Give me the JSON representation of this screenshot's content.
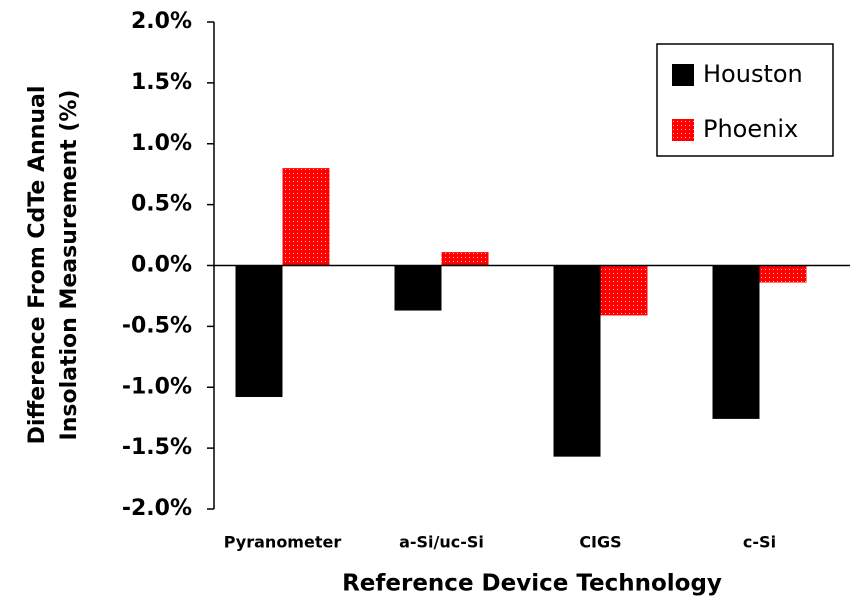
{
  "chart_data": {
    "type": "bar",
    "x_label": "Reference Device Technology",
    "y_label": [
      "Difference From CdTe Annual",
      "Insolation Measurement (%)"
    ],
    "categories": [
      "Pyranometer",
      "a-Si/uc-Si",
      "CIGS",
      "c-Si"
    ],
    "series": [
      {
        "name": "Houston",
        "color": "#000000",
        "values": [
          -1.08,
          -0.37,
          -1.57,
          -1.26
        ]
      },
      {
        "name": "Phoenix",
        "color": "#ff0000",
        "values": [
          0.8,
          0.11,
          -0.41,
          -0.14
        ]
      }
    ],
    "ylim": [
      -2.0,
      2.0
    ],
    "yticks": [
      {
        "value": -2.0,
        "label": "-2.0%"
      },
      {
        "value": -1.5,
        "label": "-1.5%"
      },
      {
        "value": -1.0,
        "label": "-1.0%"
      },
      {
        "value": -0.5,
        "label": "-0.5%"
      },
      {
        "value": 0.0,
        "label": "0.0%"
      },
      {
        "value": 0.5,
        "label": "0.5%"
      },
      {
        "value": 1.0,
        "label": "1.0%"
      },
      {
        "value": 1.5,
        "label": "1.5%"
      },
      {
        "value": 2.0,
        "label": "2.0%"
      }
    ],
    "legend": "upper right"
  }
}
